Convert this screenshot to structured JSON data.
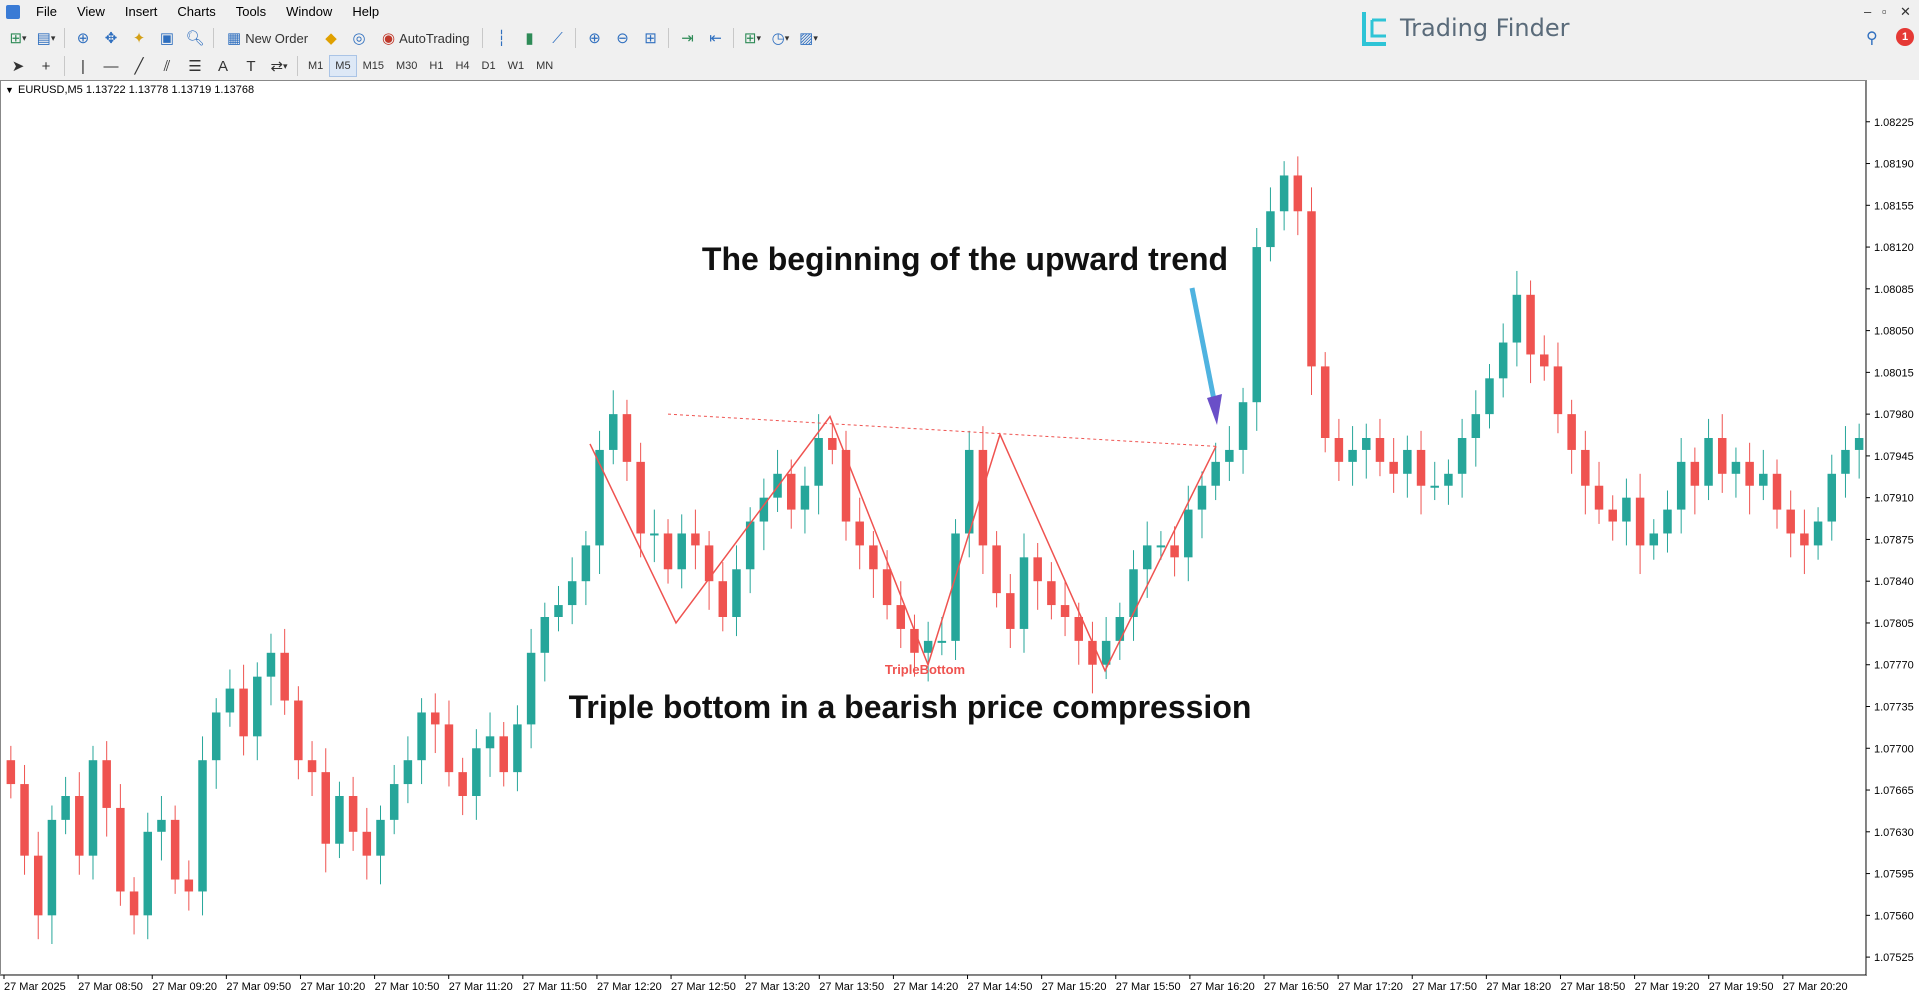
{
  "menu": [
    "File",
    "View",
    "Insert",
    "Charts",
    "Tools",
    "Window",
    "Help"
  ],
  "toolbar": {
    "new_order": "New Order",
    "auto_trading": "AutoTrading",
    "timeframes": [
      "M1",
      "M5",
      "M15",
      "M30",
      "H1",
      "H4",
      "D1",
      "W1",
      "MN"
    ],
    "active_timeframe": "M5"
  },
  "brand": {
    "name": "Trading Finder"
  },
  "notifications": {
    "count": "1"
  },
  "chart": {
    "header": "EURUSD,M5  1.13722 1.13778 1.13719 1.13768",
    "pattern_label": "TripleBottom",
    "annotation_top": "The beginning of the upward trend",
    "annotation_bottom": "Triple bottom in a bearish price compression",
    "colors": {
      "bull": "#26a69a",
      "bear": "#ef5350",
      "pattern": "#ef5350",
      "arrow": "#6a4fc8"
    }
  },
  "chart_data": {
    "type": "candlestick",
    "price_ticks": [
      "1.08225",
      "1.08190",
      "1.08155",
      "1.08120",
      "1.08085",
      "1.08050",
      "1.08015",
      "1.07980",
      "1.07945",
      "1.07910",
      "1.07875",
      "1.07840",
      "1.07805",
      "1.07770",
      "1.07735",
      "1.07700",
      "1.07665",
      "1.07630",
      "1.07595",
      "1.07560",
      "1.07525"
    ],
    "time_ticks": [
      "27 Mar 2025",
      "27 Mar 08:50",
      "27 Mar 09:20",
      "27 Mar 09:50",
      "27 Mar 10:20",
      "27 Mar 10:50",
      "27 Mar 11:20",
      "27 Mar 11:50",
      "27 Mar 12:20",
      "27 Mar 12:50",
      "27 Mar 13:20",
      "27 Mar 13:50",
      "27 Mar 14:20",
      "27 Mar 14:50",
      "27 Mar 15:20",
      "27 Mar 15:50",
      "27 Mar 16:20",
      "27 Mar 16:50",
      "27 Mar 17:20",
      "27 Mar 17:50",
      "27 Mar 18:20",
      "27 Mar 18:50",
      "27 Mar 19:20",
      "27 Mar 19:50",
      "27 Mar 20:20"
    ],
    "ylim": [
      1.0751,
      1.0826
    ],
    "candle_closes": [
      1.0767,
      1.0761,
      1.0756,
      1.0764,
      1.0766,
      1.0761,
      1.0769,
      1.0765,
      1.0758,
      1.0756,
      1.0763,
      1.0764,
      1.0759,
      1.0758,
      1.0769,
      1.0773,
      1.0775,
      1.0771,
      1.0776,
      1.0778,
      1.0774,
      1.0769,
      1.0768,
      1.0762,
      1.0766,
      1.0763,
      1.0761,
      1.0764,
      1.0767,
      1.0769,
      1.0773,
      1.0772,
      1.0768,
      1.0766,
      1.077,
      1.0771,
      1.0768,
      1.0772,
      1.0778,
      1.0781,
      1.0782,
      1.0784,
      1.0787,
      1.0795,
      1.0798,
      1.0794,
      1.0788,
      1.0788,
      1.0785,
      1.0788,
      1.0787,
      1.0784,
      1.0781,
      1.0785,
      1.0789,
      1.0791,
      1.0793,
      1.079,
      1.0792,
      1.0796,
      1.0795,
      1.0789,
      1.0787,
      1.0785,
      1.0782,
      1.078,
      1.0778,
      1.0779,
      1.0779,
      1.0788,
      1.0795,
      1.0787,
      1.0783,
      1.078,
      1.0786,
      1.0784,
      1.0782,
      1.0781,
      1.0779,
      1.0777,
      1.0779,
      1.0781,
      1.0785,
      1.0787,
      1.0787,
      1.0786,
      1.079,
      1.0792,
      1.0794,
      1.0795,
      1.0799,
      1.0812,
      1.0815,
      1.0818,
      1.0815,
      1.0802,
      1.0796,
      1.0794,
      1.0795,
      1.0796,
      1.0794,
      1.0793,
      1.0795,
      1.0792,
      1.0792,
      1.0793,
      1.0796,
      1.0798,
      1.0801,
      1.0804,
      1.0808,
      1.0803,
      1.0802,
      1.0798,
      1.0795,
      1.0792,
      1.079,
      1.0789,
      1.0791,
      1.0787,
      1.0788,
      1.079,
      1.0794,
      1.0792,
      1.0796,
      1.0793,
      1.0794,
      1.0792,
      1.0793,
      1.079,
      1.0788,
      1.0787,
      1.0789,
      1.0793,
      1.0795,
      1.0796
    ],
    "triple_bottom": {
      "troughs": [
        1.07805,
        1.0777,
        1.07765
      ],
      "resistance_line": [
        1.0798,
        1.07953
      ]
    }
  }
}
